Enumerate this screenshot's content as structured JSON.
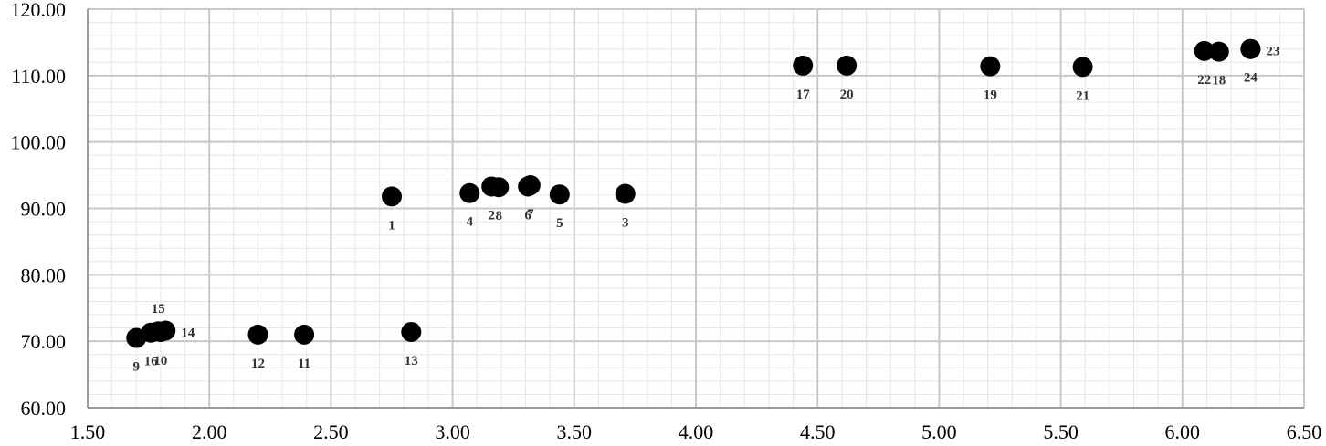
{
  "chart_data": {
    "type": "scatter",
    "title": "",
    "xlabel": "",
    "ylabel": "",
    "xlim": [
      1.5,
      6.5
    ],
    "ylim": [
      60,
      120
    ],
    "x_major_step": 0.5,
    "y_major_step": 10,
    "x_minor_step": 0.1,
    "y_minor_step": 2,
    "grid": true,
    "legend": "none",
    "marker_color": "#000000",
    "x_tick_labels": [
      "1.50",
      "2.00",
      "2.50",
      "3.00",
      "3.50",
      "4.00",
      "4.50",
      "5.00",
      "5.50",
      "6.00",
      "6.50"
    ],
    "y_tick_labels": [
      "60.00",
      "70.00",
      "80.00",
      "90.00",
      "100.00",
      "110.00",
      "120.00"
    ],
    "points": [
      {
        "label": "1",
        "x": 2.75,
        "y": 91.8,
        "label_pos": "below"
      },
      {
        "label": "2",
        "x": 3.16,
        "y": 93.3,
        "label_pos": "below"
      },
      {
        "label": "3",
        "x": 3.71,
        "y": 92.2,
        "label_pos": "below"
      },
      {
        "label": "4",
        "x": 3.07,
        "y": 92.3,
        "label_pos": "below"
      },
      {
        "label": "5",
        "x": 3.44,
        "y": 92.1,
        "label_pos": "below"
      },
      {
        "label": "6",
        "x": 3.31,
        "y": 93.3,
        "label_pos": "below"
      },
      {
        "label": "7",
        "x": 3.32,
        "y": 93.5,
        "label_pos": "below"
      },
      {
        "label": "8",
        "x": 3.19,
        "y": 93.2,
        "label_pos": "below"
      },
      {
        "label": "9",
        "x": 1.7,
        "y": 70.5,
        "label_pos": "below"
      },
      {
        "label": "10",
        "x": 1.8,
        "y": 71.4,
        "label_pos": "below"
      },
      {
        "label": "11",
        "x": 2.39,
        "y": 71.0,
        "label_pos": "below"
      },
      {
        "label": "12",
        "x": 2.2,
        "y": 71.0,
        "label_pos": "below"
      },
      {
        "label": "13",
        "x": 2.83,
        "y": 71.4,
        "label_pos": "below"
      },
      {
        "label": "14",
        "x": 1.82,
        "y": 71.6,
        "label_pos": "right"
      },
      {
        "label": "15",
        "x": 1.79,
        "y": 71.5,
        "label_pos": "above"
      },
      {
        "label": "16",
        "x": 1.76,
        "y": 71.3,
        "label_pos": "below"
      },
      {
        "label": "17",
        "x": 4.44,
        "y": 111.5,
        "label_pos": "below"
      },
      {
        "label": "18",
        "x": 6.15,
        "y": 113.6,
        "label_pos": "below"
      },
      {
        "label": "19",
        "x": 5.21,
        "y": 111.4,
        "label_pos": "below"
      },
      {
        "label": "20",
        "x": 4.62,
        "y": 111.5,
        "label_pos": "below"
      },
      {
        "label": "21",
        "x": 5.59,
        "y": 111.3,
        "label_pos": "below"
      },
      {
        "label": "22",
        "x": 6.09,
        "y": 113.7,
        "label_pos": "below"
      },
      {
        "label": "23",
        "x": 6.28,
        "y": 114.0,
        "label_pos": "right"
      },
      {
        "label": "24",
        "x": 6.28,
        "y": 114.0,
        "label_pos": "below"
      }
    ]
  }
}
